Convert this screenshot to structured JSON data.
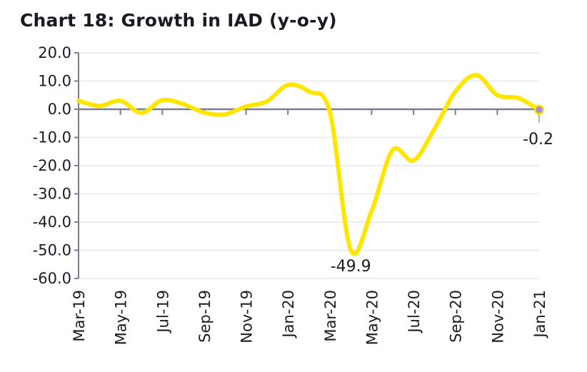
{
  "chart_data": {
    "type": "line",
    "title": "Chart 18: Growth in IAD (y-o-y)",
    "xlabel": "",
    "ylabel": "",
    "ylim": [
      -60,
      20
    ],
    "yticks": [
      "20.0",
      "10.0",
      "0.0",
      "-10.0",
      "-20.0",
      "-30.0",
      "-40.0",
      "-50.0",
      "-60.0"
    ],
    "x": [
      "Mar-19",
      "Apr-19",
      "May-19",
      "Jun-19",
      "Jul-19",
      "Aug-19",
      "Sep-19",
      "Oct-19",
      "Nov-19",
      "Dec-19",
      "Jan-20",
      "Feb-20",
      "Mar-20",
      "Apr-20",
      "May-20",
      "Jun-20",
      "Jul-20",
      "Aug-20",
      "Sep-20",
      "Oct-20",
      "Nov-20",
      "Dec-20",
      "Jan-21"
    ],
    "xtick_labels": [
      "Mar-19",
      "May-19",
      "Jul-19",
      "Sep-19",
      "Nov-19",
      "Jan-20",
      "Mar-20",
      "May-20",
      "Jul-20",
      "Sep-20",
      "Nov-20",
      "Jan-21"
    ],
    "series": [
      {
        "values": [
          3.0,
          1.2,
          3.0,
          -1.3,
          3.2,
          1.8,
          -1.2,
          -1.8,
          1.0,
          2.8,
          8.6,
          6.3,
          -1.0,
          -49.9,
          -36.0,
          -14.5,
          -18.2,
          -7.0,
          6.3,
          12.1,
          5.0,
          4.0,
          -0.2
        ],
        "color": "#FFE600"
      }
    ],
    "annotations": [
      {
        "x": "Apr-20",
        "label": "-49.9"
      },
      {
        "x": "Jan-21",
        "label": "-0.2"
      }
    ],
    "marker_color": "#A98BE8",
    "grid": true,
    "legend": "none"
  }
}
